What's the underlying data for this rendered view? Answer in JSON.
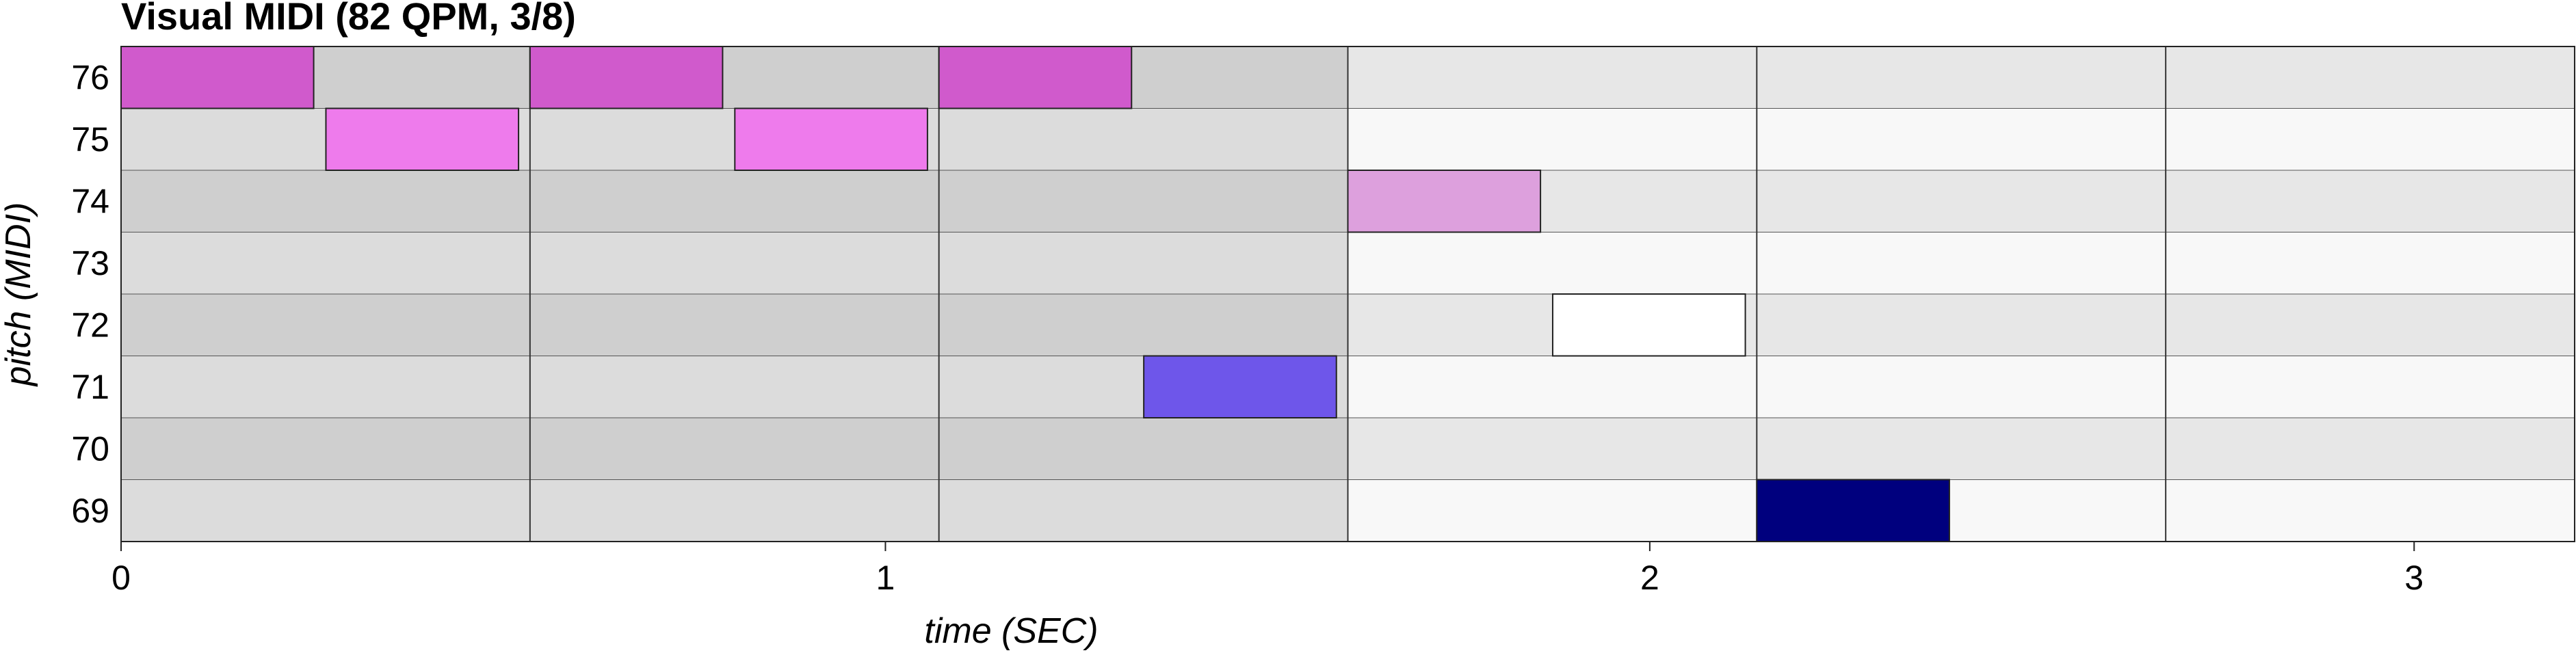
{
  "chart_data": {
    "type": "piano-roll",
    "title": "Visual MIDI (82 QPM, 3/8)",
    "xlabel": "time (SEC)",
    "ylabel": "pitch (MIDI)",
    "xlim": [
      0,
      3.21
    ],
    "x_ticks": [
      0,
      1,
      2,
      3
    ],
    "pitches": [
      76,
      75,
      74,
      73,
      72,
      71,
      70,
      69
    ],
    "bar_lines": [
      0.535,
      1.07,
      1.605,
      2.14,
      2.675
    ],
    "shaded_until": 1.605,
    "colors": {
      "shade_even": "#dcdcdc",
      "shade_odd": "#cfcfcf",
      "plain_even": "#e7e7e7",
      "plain_odd": "#f8f8f8"
    },
    "notes": [
      {
        "pitch": 76,
        "start": 0.0,
        "end": 0.252,
        "color": "#d05acc"
      },
      {
        "pitch": 75,
        "start": 0.268,
        "end": 0.52,
        "color": "#ee7bec"
      },
      {
        "pitch": 76,
        "start": 0.535,
        "end": 0.787,
        "color": "#d05acc"
      },
      {
        "pitch": 75,
        "start": 0.803,
        "end": 1.055,
        "color": "#ee7bec"
      },
      {
        "pitch": 76,
        "start": 1.07,
        "end": 1.322,
        "color": "#d05acc"
      },
      {
        "pitch": 71,
        "start": 1.338,
        "end": 1.59,
        "color": "#6e56ea"
      },
      {
        "pitch": 74,
        "start": 1.605,
        "end": 1.857,
        "color": "#dda0dd"
      },
      {
        "pitch": 72,
        "start": 1.873,
        "end": 2.125,
        "color": "#ffffff"
      },
      {
        "pitch": 69,
        "start": 2.14,
        "end": 2.392,
        "color": "#00007e"
      }
    ]
  }
}
